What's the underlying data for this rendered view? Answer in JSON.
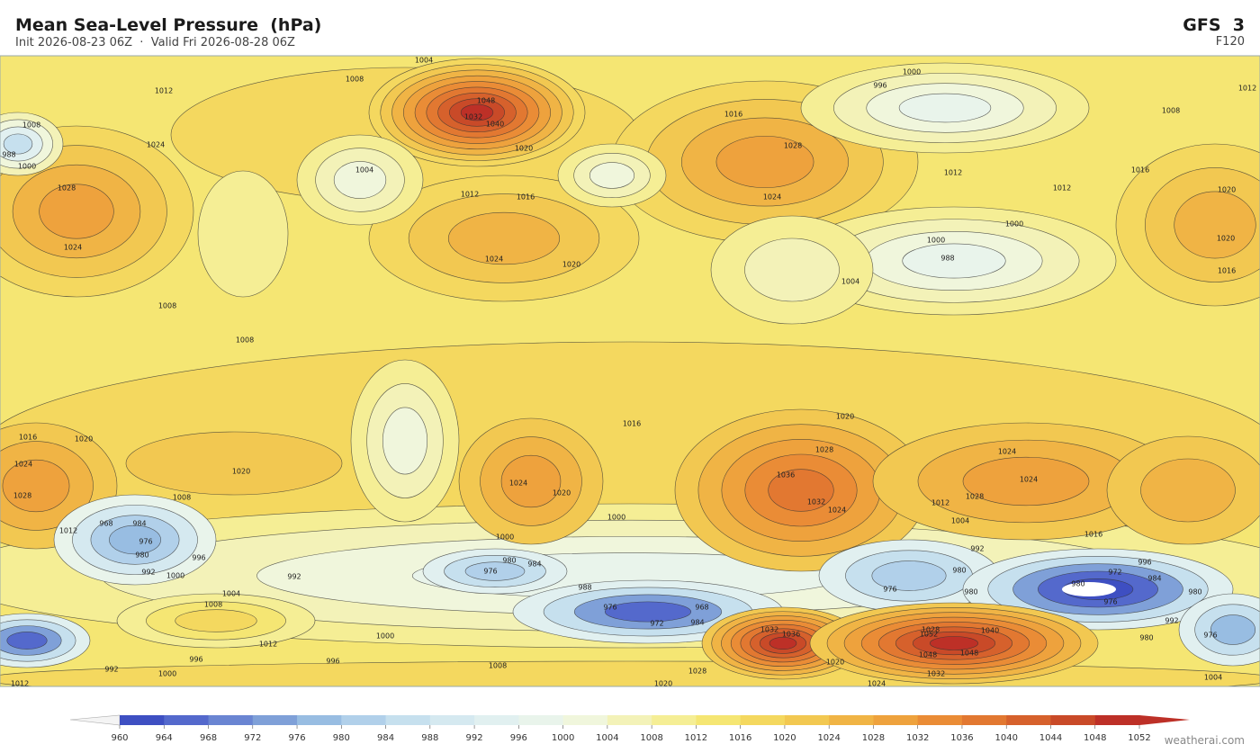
{
  "header": {
    "title": "Mean Sea-Level Pressure  (hPa)",
    "subtitle": "Init 2026-08-23 06Z  ·  Valid Fri 2026-08-28 06Z",
    "model": "GFS  3",
    "forecast_hour": "F120"
  },
  "map": {
    "contour_labels": [
      1004,
      1000,
      1012,
      1008,
      1048,
      1032,
      1040,
      1020,
      1016,
      996,
      1008,
      1012,
      1008,
      1024,
      988,
      1000,
      1028,
      1024,
      1004,
      1012,
      1016,
      1028,
      1024,
      1012,
      1012,
      1016,
      1020,
      1020,
      1000,
      1000,
      988,
      1004,
      1016,
      1024,
      1020,
      1008,
      1008,
      1016,
      1020,
      1024,
      1020,
      1028,
      1012,
      1008,
      968,
      984,
      976,
      980,
      992,
      1000,
      996,
      992,
      1004,
      1008,
      1012,
      996,
      992,
      1000,
      996,
      1000,
      1016,
      1020,
      1028,
      1036,
      1032,
      1024,
      1024,
      1028,
      1012,
      1004,
      1016,
      1024,
      1024,
      1020,
      1000,
      1000,
      984,
      976,
      980,
      988,
      976,
      992,
      980,
      980,
      976,
      972,
      996,
      984,
      980,
      976,
      980,
      992,
      980,
      976,
      968,
      984,
      972,
      1032,
      1036,
      1052,
      1048,
      1048,
      1040,
      1028,
      1032,
      1024,
      1020,
      1028,
      1020,
      1008,
      1004,
      1012
    ]
  },
  "colorbar": {
    "ticks": [
      960,
      964,
      968,
      972,
      976,
      980,
      984,
      988,
      992,
      996,
      1000,
      1004,
      1008,
      1012,
      1016,
      1020,
      1024,
      1028,
      1032,
      1036,
      1040,
      1044,
      1048,
      1052
    ],
    "colors": [
      "#3e4fc2",
      "#5469cc",
      "#6a85d2",
      "#7fa0d8",
      "#98bde2",
      "#b1d0ea",
      "#c6e0ee",
      "#d5e9f0",
      "#e1f0f0",
      "#e9f4eb",
      "#f0f6dc",
      "#f3f2b8",
      "#f5ee95",
      "#f5e673",
      "#f4d85f",
      "#f2c851",
      "#f0b445",
      "#eea23d",
      "#ea8c36",
      "#e27831",
      "#d6612c",
      "#c94a28",
      "#bd3027"
    ]
  },
  "footer": {
    "credit": "weatherai.com"
  }
}
